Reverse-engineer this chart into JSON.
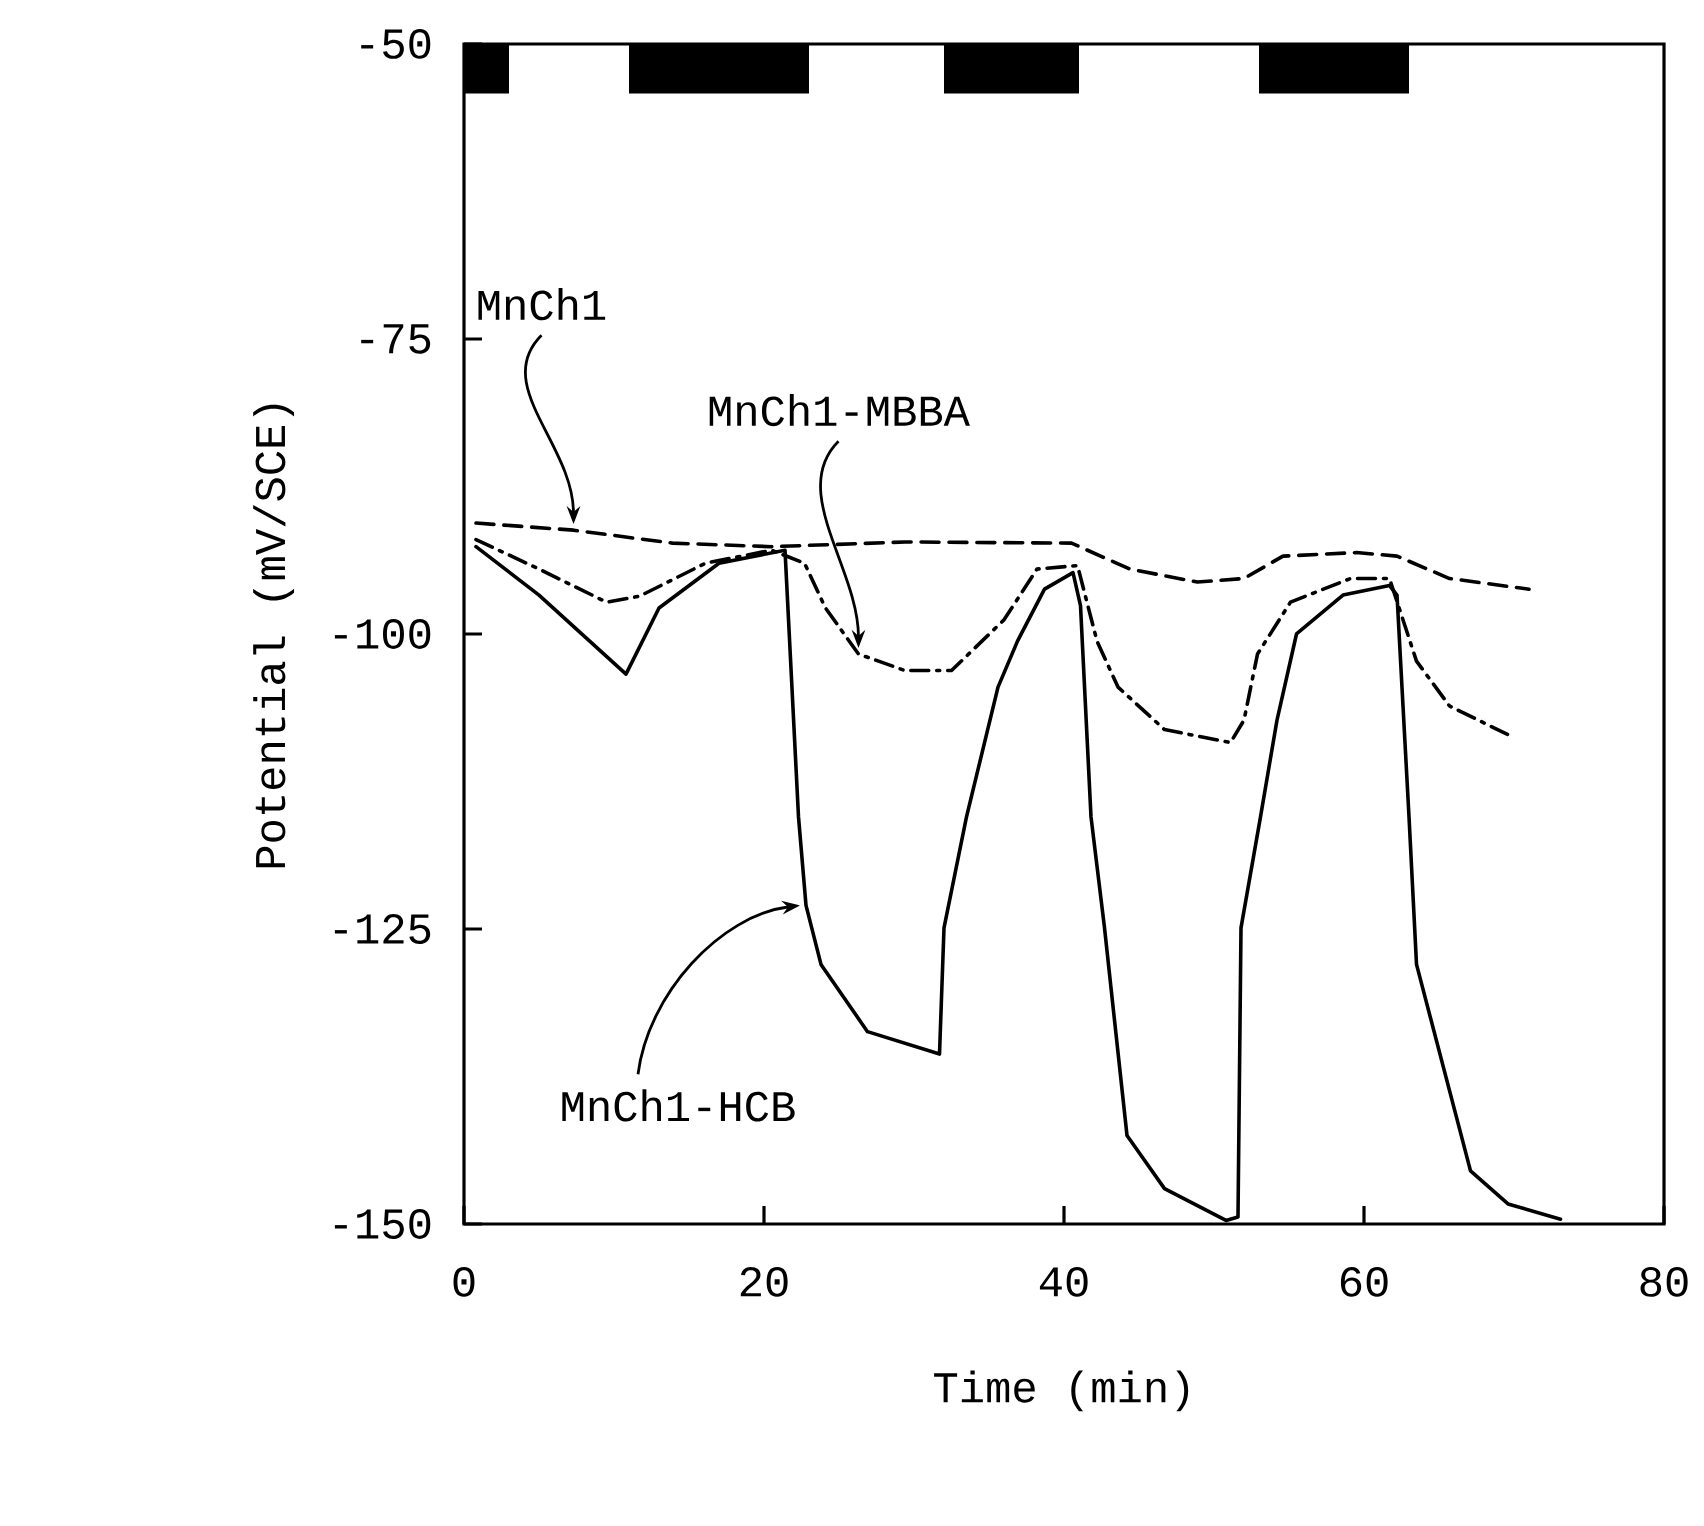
{
  "chart_data": {
    "type": "line",
    "xlabel": "Time (min)",
    "ylabel": "Potential (mV/SCE)",
    "xlim": [
      0,
      80
    ],
    "ylim": [
      -150,
      -50
    ],
    "xticks": [
      0,
      20,
      40,
      60,
      80
    ],
    "yticks": [
      -150,
      -125,
      -100,
      -75,
      -50
    ],
    "grid": false,
    "series": [
      {
        "name": "MnCh1",
        "color": "#000000",
        "line_style": "dashed",
        "x": [
          0.8,
          7.3,
          13.9,
          20.5,
          29.4,
          40.5,
          44.4,
          48.9,
          52.0,
          54.6,
          59.5,
          62.2,
          65.7,
          71.0
        ],
        "values": [
          -90.6,
          -91.2,
          -92.3,
          -92.6,
          -92.2,
          -92.3,
          -94.5,
          -95.6,
          -95.3,
          -93.4,
          -93.1,
          -93.4,
          -95.3,
          -96.2
        ]
      },
      {
        "name": "MnCh1-MBBA",
        "color": "#000000",
        "line_style": "dashdot",
        "x": [
          0.8,
          5.0,
          9.5,
          11.7,
          16.1,
          20.5,
          22.7,
          24.1,
          26.3,
          29.4,
          32.5,
          36.0,
          38.2,
          40.9,
          42.2,
          43.6,
          46.7,
          51.1,
          52.0,
          52.9,
          55.1,
          59.1,
          61.7,
          63.5,
          65.7,
          69.7
        ],
        "values": [
          -92.0,
          -94.5,
          -97.3,
          -96.8,
          -94.0,
          -92.9,
          -94.0,
          -97.8,
          -101.7,
          -103.1,
          -103.1,
          -98.8,
          -94.5,
          -94.2,
          -100.6,
          -104.5,
          -108.1,
          -109.2,
          -107.3,
          -101.7,
          -97.3,
          -95.3,
          -95.3,
          -102.3,
          -106.1,
          -108.6
        ]
      },
      {
        "name": "MnCh1-HCB",
        "color": "#000000",
        "line_style": "solid",
        "x": [
          0.8,
          5.0,
          10.8,
          13.0,
          17.0,
          21.4,
          22.3,
          22.8,
          23.8,
          26.9,
          31.7,
          32.0,
          33.5,
          35.6,
          36.9,
          38.7,
          40.6,
          41.1,
          41.8,
          42.7,
          44.2,
          46.7,
          50.8,
          51.6,
          51.8,
          53.1,
          54.2,
          55.5,
          58.6,
          61.7,
          62.2,
          63.0,
          63.5,
          67.1,
          69.6,
          73.1
        ],
        "values": [
          -92.6,
          -96.7,
          -103.4,
          -97.8,
          -94.0,
          -92.9,
          -115.5,
          -123.0,
          -128.0,
          -133.7,
          -135.6,
          -124.9,
          -115.5,
          -104.5,
          -100.6,
          -96.2,
          -94.8,
          -97.6,
          -115.5,
          -124.9,
          -142.5,
          -147.0,
          -149.7,
          -149.4,
          -124.9,
          -115.5,
          -107.3,
          -100.0,
          -96.7,
          -95.9,
          -96.7,
          -115.5,
          -128.0,
          -145.5,
          -148.3,
          -149.6
        ]
      }
    ],
    "bands": [
      {
        "axis": "x",
        "from": 0,
        "to": 3,
        "color": "#000000"
      },
      {
        "axis": "x",
        "from": 11,
        "to": 23,
        "color": "#000000"
      },
      {
        "axis": "x",
        "from": 32,
        "to": 41,
        "color": "#000000"
      },
      {
        "axis": "x",
        "from": 53,
        "to": 63,
        "color": "#000000"
      }
    ]
  }
}
